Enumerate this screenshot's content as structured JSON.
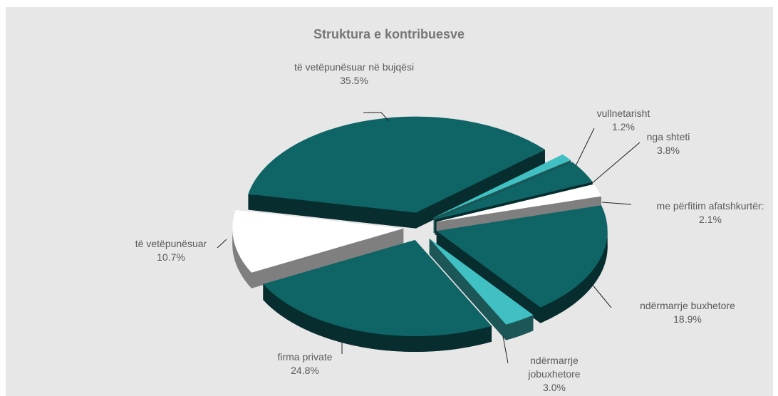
{
  "chart_data": {
    "type": "pie3d",
    "title": "Struktura e kontribuesve",
    "categories": [
      "të vetëpunësuar në bujqësi",
      "vullnetarisht",
      "nga shteti",
      "me përfitim afatshkurtër:",
      "ndërmarrje buxhetore",
      "ndërmarrje jobuxhetore",
      "firma private",
      "të vetëpunësuar"
    ],
    "values": [
      35.5,
      1.2,
      3.8,
      2.1,
      18.9,
      3.0,
      24.8,
      10.7
    ],
    "value_labels": [
      "35.5%",
      "1.2%",
      "3.8%",
      "2.1%",
      "18.9%",
      "3.0%",
      "24.8%",
      "10.7%"
    ],
    "colors": [
      "#0f6566",
      "#40c0c2",
      "#0f6566",
      "#ffffff",
      "#0f6566",
      "#40c0c2",
      "#0f6566",
      "#ffffff"
    ]
  }
}
